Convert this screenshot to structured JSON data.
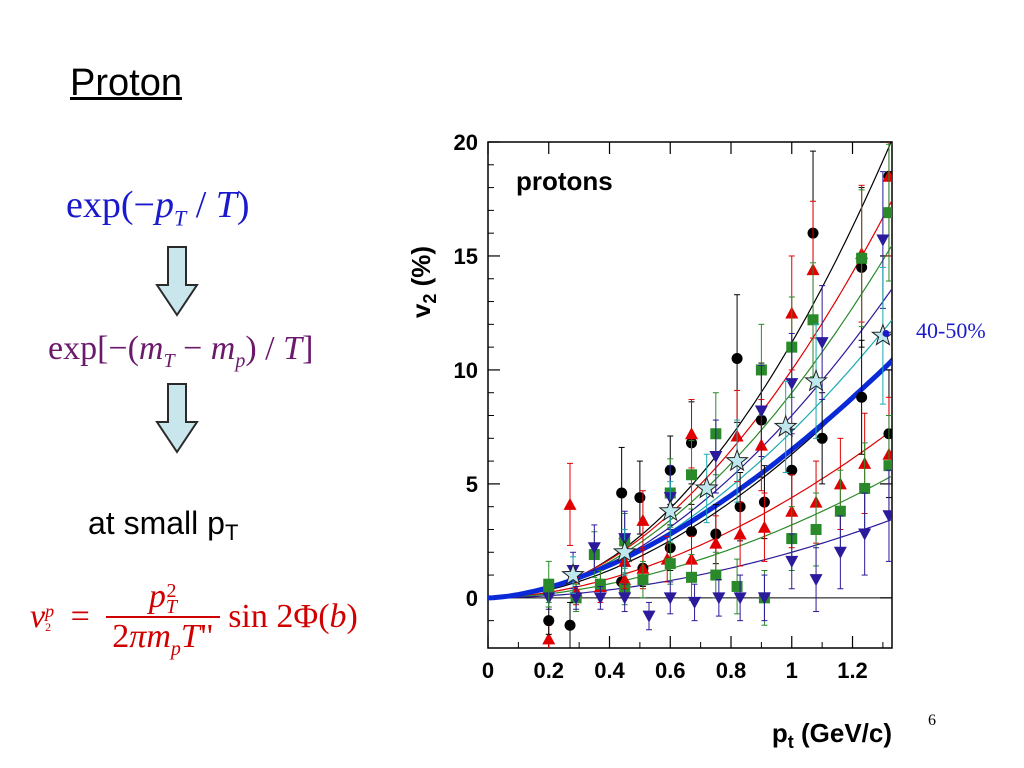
{
  "slide": {
    "title": "Proton",
    "formula1": "exp(−p_T / T)",
    "formula2": "exp[−(m_T − m_p) / T]",
    "small_pt_text": "at small p",
    "small_pt_sub": "T",
    "formula3": "v2^p = p_T^2 / (2π m_p T\") sin 2Φ(b)",
    "page_number": "6"
  },
  "colors": {
    "blue": "#1a1acc",
    "purple": "#6b1a6b",
    "red": "#d00000",
    "arrow_fill": "#c8e6ec",
    "arrow_stroke": "#2a2a2a"
  },
  "chart_data": {
    "type": "scatter",
    "title": "",
    "inset_label": "protons",
    "xlabel": "p",
    "xlabel_sub": "t",
    "xlabel_unit": " (GeV/c)",
    "ylabel": "v",
    "ylabel_sub": "2",
    "ylabel_unit": " (%)",
    "xlim": [
      0,
      1.33
    ],
    "ylim": [
      -2.2,
      20
    ],
    "x_ticks": [
      0,
      0.2,
      0.4,
      0.6,
      0.8,
      1,
      1.2
    ],
    "x_tick_labels": [
      "0",
      "0.2",
      "0.4",
      "0.6",
      "0.8",
      "1",
      "1.2"
    ],
    "y_ticks": [
      0,
      5,
      10,
      15,
      20
    ],
    "y_tick_labels": [
      "0",
      "5",
      "10",
      "15",
      "20"
    ],
    "annotation": "40-50%",
    "annotation_y": 11.6,
    "series": [
      {
        "color": "#000000",
        "marker": "circle",
        "fit_k": 11.2,
        "fit_exp": 2.05,
        "x": [
          0.2,
          0.27,
          0.44,
          0.5,
          0.6,
          0.67,
          0.82,
          0.9,
          1.07,
          1.23,
          1.32
        ],
        "y": [
          -1.0,
          -1.2,
          4.6,
          4.4,
          5.6,
          6.8,
          10.5,
          7.8,
          16.0,
          14.5,
          18.5
        ],
        "err": [
          0.6,
          1.0,
          2.0,
          1.6,
          1.5,
          1.8,
          2.8,
          2.5,
          3.6,
          3.5,
          3.5
        ]
      },
      {
        "color": "#e00000",
        "marker": "triangle-up",
        "fit_k": 10.0,
        "fit_exp": 1.95,
        "x": [
          0.27,
          0.45,
          0.51,
          0.67,
          0.82,
          0.9,
          1.0,
          1.07,
          1.23,
          1.32
        ],
        "y": [
          4.1,
          1.6,
          3.4,
          7.2,
          7.1,
          6.7,
          12.5,
          14.4,
          15.1,
          18.5
        ],
        "err": [
          1.8,
          1.2,
          1.3,
          1.5,
          2.0,
          2.0,
          2.5,
          3.0,
          3.0,
          3.5
        ]
      },
      {
        "color": "#2a8a2a",
        "marker": "square",
        "fit_k": 9.0,
        "fit_exp": 1.9,
        "x": [
          0.2,
          0.35,
          0.45,
          0.6,
          0.67,
          0.75,
          0.9,
          1.0,
          1.07,
          1.23,
          1.32
        ],
        "y": [
          0.6,
          1.9,
          2.5,
          4.6,
          5.4,
          7.2,
          10.0,
          11.0,
          12.2,
          14.9,
          16.9
        ],
        "err": [
          1.0,
          1.0,
          1.2,
          1.5,
          1.5,
          1.8,
          2.0,
          2.2,
          2.5,
          3.0,
          3.0
        ]
      },
      {
        "color": "#2b1a9b",
        "marker": "triangle-down",
        "fit_k": 8.0,
        "fit_exp": 1.85,
        "x": [
          0.28,
          0.35,
          0.45,
          0.6,
          0.75,
          0.9,
          1.0,
          1.1,
          1.3
        ],
        "y": [
          1.2,
          2.2,
          2.6,
          4.4,
          6.2,
          8.2,
          9.4,
          11.2,
          15.7
        ],
        "err": [
          0.8,
          1.0,
          1.2,
          1.4,
          1.6,
          2.0,
          2.2,
          2.5,
          3.0
        ]
      },
      {
        "color": "#1aaab0",
        "marker": "star",
        "fit_k": 7.3,
        "fit_exp": 1.8,
        "x": [
          0.28,
          0.45,
          0.6,
          0.72,
          0.82,
          0.98,
          1.08,
          1.3
        ],
        "y": [
          1.0,
          2.0,
          3.8,
          4.8,
          6.0,
          7.5,
          9.5,
          11.5
        ],
        "err": [
          0.8,
          1.0,
          1.3,
          1.5,
          1.8,
          2.0,
          2.5,
          3.0
        ]
      }
    ],
    "lower_series": [
      {
        "color": "#000000",
        "marker": "circle",
        "x": [
          0.44,
          0.51,
          0.6,
          0.67,
          0.75,
          0.83,
          0.91,
          1.0,
          1.1,
          1.23,
          1.32
        ],
        "y": [
          0.7,
          1.3,
          2.2,
          2.9,
          2.8,
          4.0,
          4.2,
          5.6,
          7.0,
          8.8,
          7.2
        ],
        "err": [
          0.7,
          0.8,
          1.0,
          1.2,
          1.3,
          1.5,
          1.6,
          1.8,
          2.0,
          2.5,
          2.8
        ]
      },
      {
        "color": "#e00000",
        "marker": "triangle-up",
        "x": [
          0.2,
          0.29,
          0.37,
          0.45,
          0.51,
          0.59,
          0.67,
          0.75,
          0.83,
          0.91,
          1.0,
          1.08,
          1.16,
          1.24,
          1.32
        ],
        "y": [
          -1.8,
          0.3,
          0.5,
          0.8,
          1.3,
          1.7,
          1.7,
          2.4,
          2.8,
          3.1,
          3.8,
          4.2,
          5.0,
          5.9,
          6.3
        ],
        "err": [
          0.6,
          0.6,
          0.7,
          0.8,
          0.9,
          1.0,
          1.0,
          1.2,
          1.4,
          1.5,
          1.6,
          1.8,
          2.0,
          2.2,
          2.5
        ]
      },
      {
        "color": "#2a8a2a",
        "marker": "square",
        "x": [
          0.2,
          0.29,
          0.37,
          0.45,
          0.51,
          0.6,
          0.67,
          0.75,
          0.82,
          0.91,
          1.0,
          1.08,
          1.16,
          1.24,
          1.32
        ],
        "y": [
          0.3,
          0.0,
          0.6,
          0.4,
          0.8,
          1.5,
          0.9,
          1.0,
          0.5,
          0.0,
          2.6,
          3.0,
          3.8,
          4.8,
          5.8
        ],
        "err": [
          0.5,
          0.6,
          0.6,
          0.7,
          0.8,
          0.9,
          1.0,
          1.0,
          1.2,
          1.2,
          1.4,
          1.6,
          1.8,
          2.0,
          2.2
        ]
      },
      {
        "color": "#2b1a9b",
        "marker": "triangle-down",
        "x": [
          0.2,
          0.29,
          0.37,
          0.45,
          0.53,
          0.6,
          0.68,
          0.76,
          0.83,
          0.91,
          1.0,
          1.08,
          1.16,
          1.24,
          1.32
        ],
        "y": [
          0.0,
          0.0,
          0.0,
          0.0,
          -0.8,
          0.0,
          -0.2,
          0.0,
          0.0,
          0.0,
          1.6,
          0.8,
          2.0,
          2.8,
          3.6
        ],
        "err": [
          0.5,
          0.5,
          0.5,
          0.6,
          0.6,
          0.7,
          0.8,
          0.8,
          1.0,
          1.0,
          1.2,
          1.4,
          1.6,
          1.8,
          2.0
        ]
      }
    ],
    "lower_fits": [
      {
        "color": "#000000",
        "fit_k": 6.3,
        "fit_exp": 1.8
      },
      {
        "color": "#e00000",
        "fit_k": 4.4,
        "fit_exp": 1.8
      },
      {
        "color": "#2a8a2a",
        "fit_k": 3.2,
        "fit_exp": 1.8
      },
      {
        "color": "#2b1a9b",
        "fit_k": 2.0,
        "fit_exp": 1.9
      }
    ],
    "thick_fit": {
      "color": "#0a2ad8",
      "fit_k": 6.5,
      "fit_exp": 1.65
    }
  }
}
